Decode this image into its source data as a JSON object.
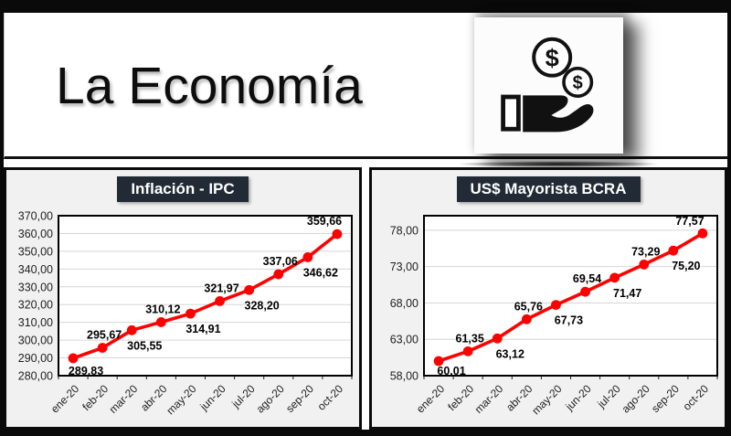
{
  "header": {
    "title": "La Economía",
    "icon": "hand-receiving-coins-icon",
    "coin_symbol": "$"
  },
  "colors": {
    "accent_red": "#FF0000",
    "chart_title_bg": "#222B35",
    "chart_title_text": "#FFFFFF",
    "panel_bg": "#F1F1F1",
    "plot_bg": "#FFFFFF",
    "grid": "#D6D6D6",
    "frame": "#0A0A0A",
    "tick_text": "#1F1F1F",
    "data_label_text": "#000000"
  },
  "chart_data": [
    {
      "type": "line",
      "title": "Inflación - IPC",
      "categories": [
        "ene-20",
        "feb-20",
        "mar-20",
        "abr-20",
        "may-20",
        "jun-20",
        "jul-20",
        "ago-20",
        "sep-20",
        "oct-20"
      ],
      "values": [
        289.83,
        295.67,
        305.55,
        310.12,
        314.91,
        321.97,
        328.2,
        337.06,
        346.62,
        359.66
      ],
      "point_labels": [
        "289,83",
        "295,67",
        "305,55",
        "310,12",
        "314,91",
        "321,97",
        "328,20",
        "337,06",
        "346,62",
        "359,66"
      ],
      "ylim": [
        280,
        370
      ],
      "yticks": [
        280,
        290,
        300,
        310,
        320,
        330,
        340,
        350,
        360,
        370
      ],
      "ytick_labels": [
        "280,00",
        "290,00",
        "300,00",
        "310,00",
        "320,00",
        "330,00",
        "340,00",
        "350,00",
        "360,00",
        "370,00"
      ],
      "xlabel": "",
      "ylabel": "",
      "grid": true,
      "legend": "none",
      "line_color": "#FF0000",
      "marker": "circle"
    },
    {
      "type": "line",
      "title": "US$ Mayorista BCRA",
      "categories": [
        "ene-20",
        "feb-20",
        "mar-20",
        "abr-20",
        "may-20",
        "jun-20",
        "jul-20",
        "ago-20",
        "sep-20",
        "oct-20"
      ],
      "values": [
        60.01,
        61.35,
        63.12,
        65.76,
        67.73,
        69.54,
        71.47,
        73.29,
        75.2,
        77.57
      ],
      "point_labels": [
        "60,01",
        "61,35",
        "63,12",
        "65,76",
        "67,73",
        "69,54",
        "71,47",
        "73,29",
        "75,20",
        "77,57"
      ],
      "ylim": [
        58,
        80
      ],
      "yticks": [
        58,
        63,
        68,
        73,
        78
      ],
      "ytick_labels": [
        "58,00",
        "63,00",
        "68,00",
        "73,00",
        "78,00"
      ],
      "xlabel": "",
      "ylabel": "",
      "grid": true,
      "legend": "none",
      "line_color": "#FF0000",
      "marker": "circle"
    }
  ]
}
